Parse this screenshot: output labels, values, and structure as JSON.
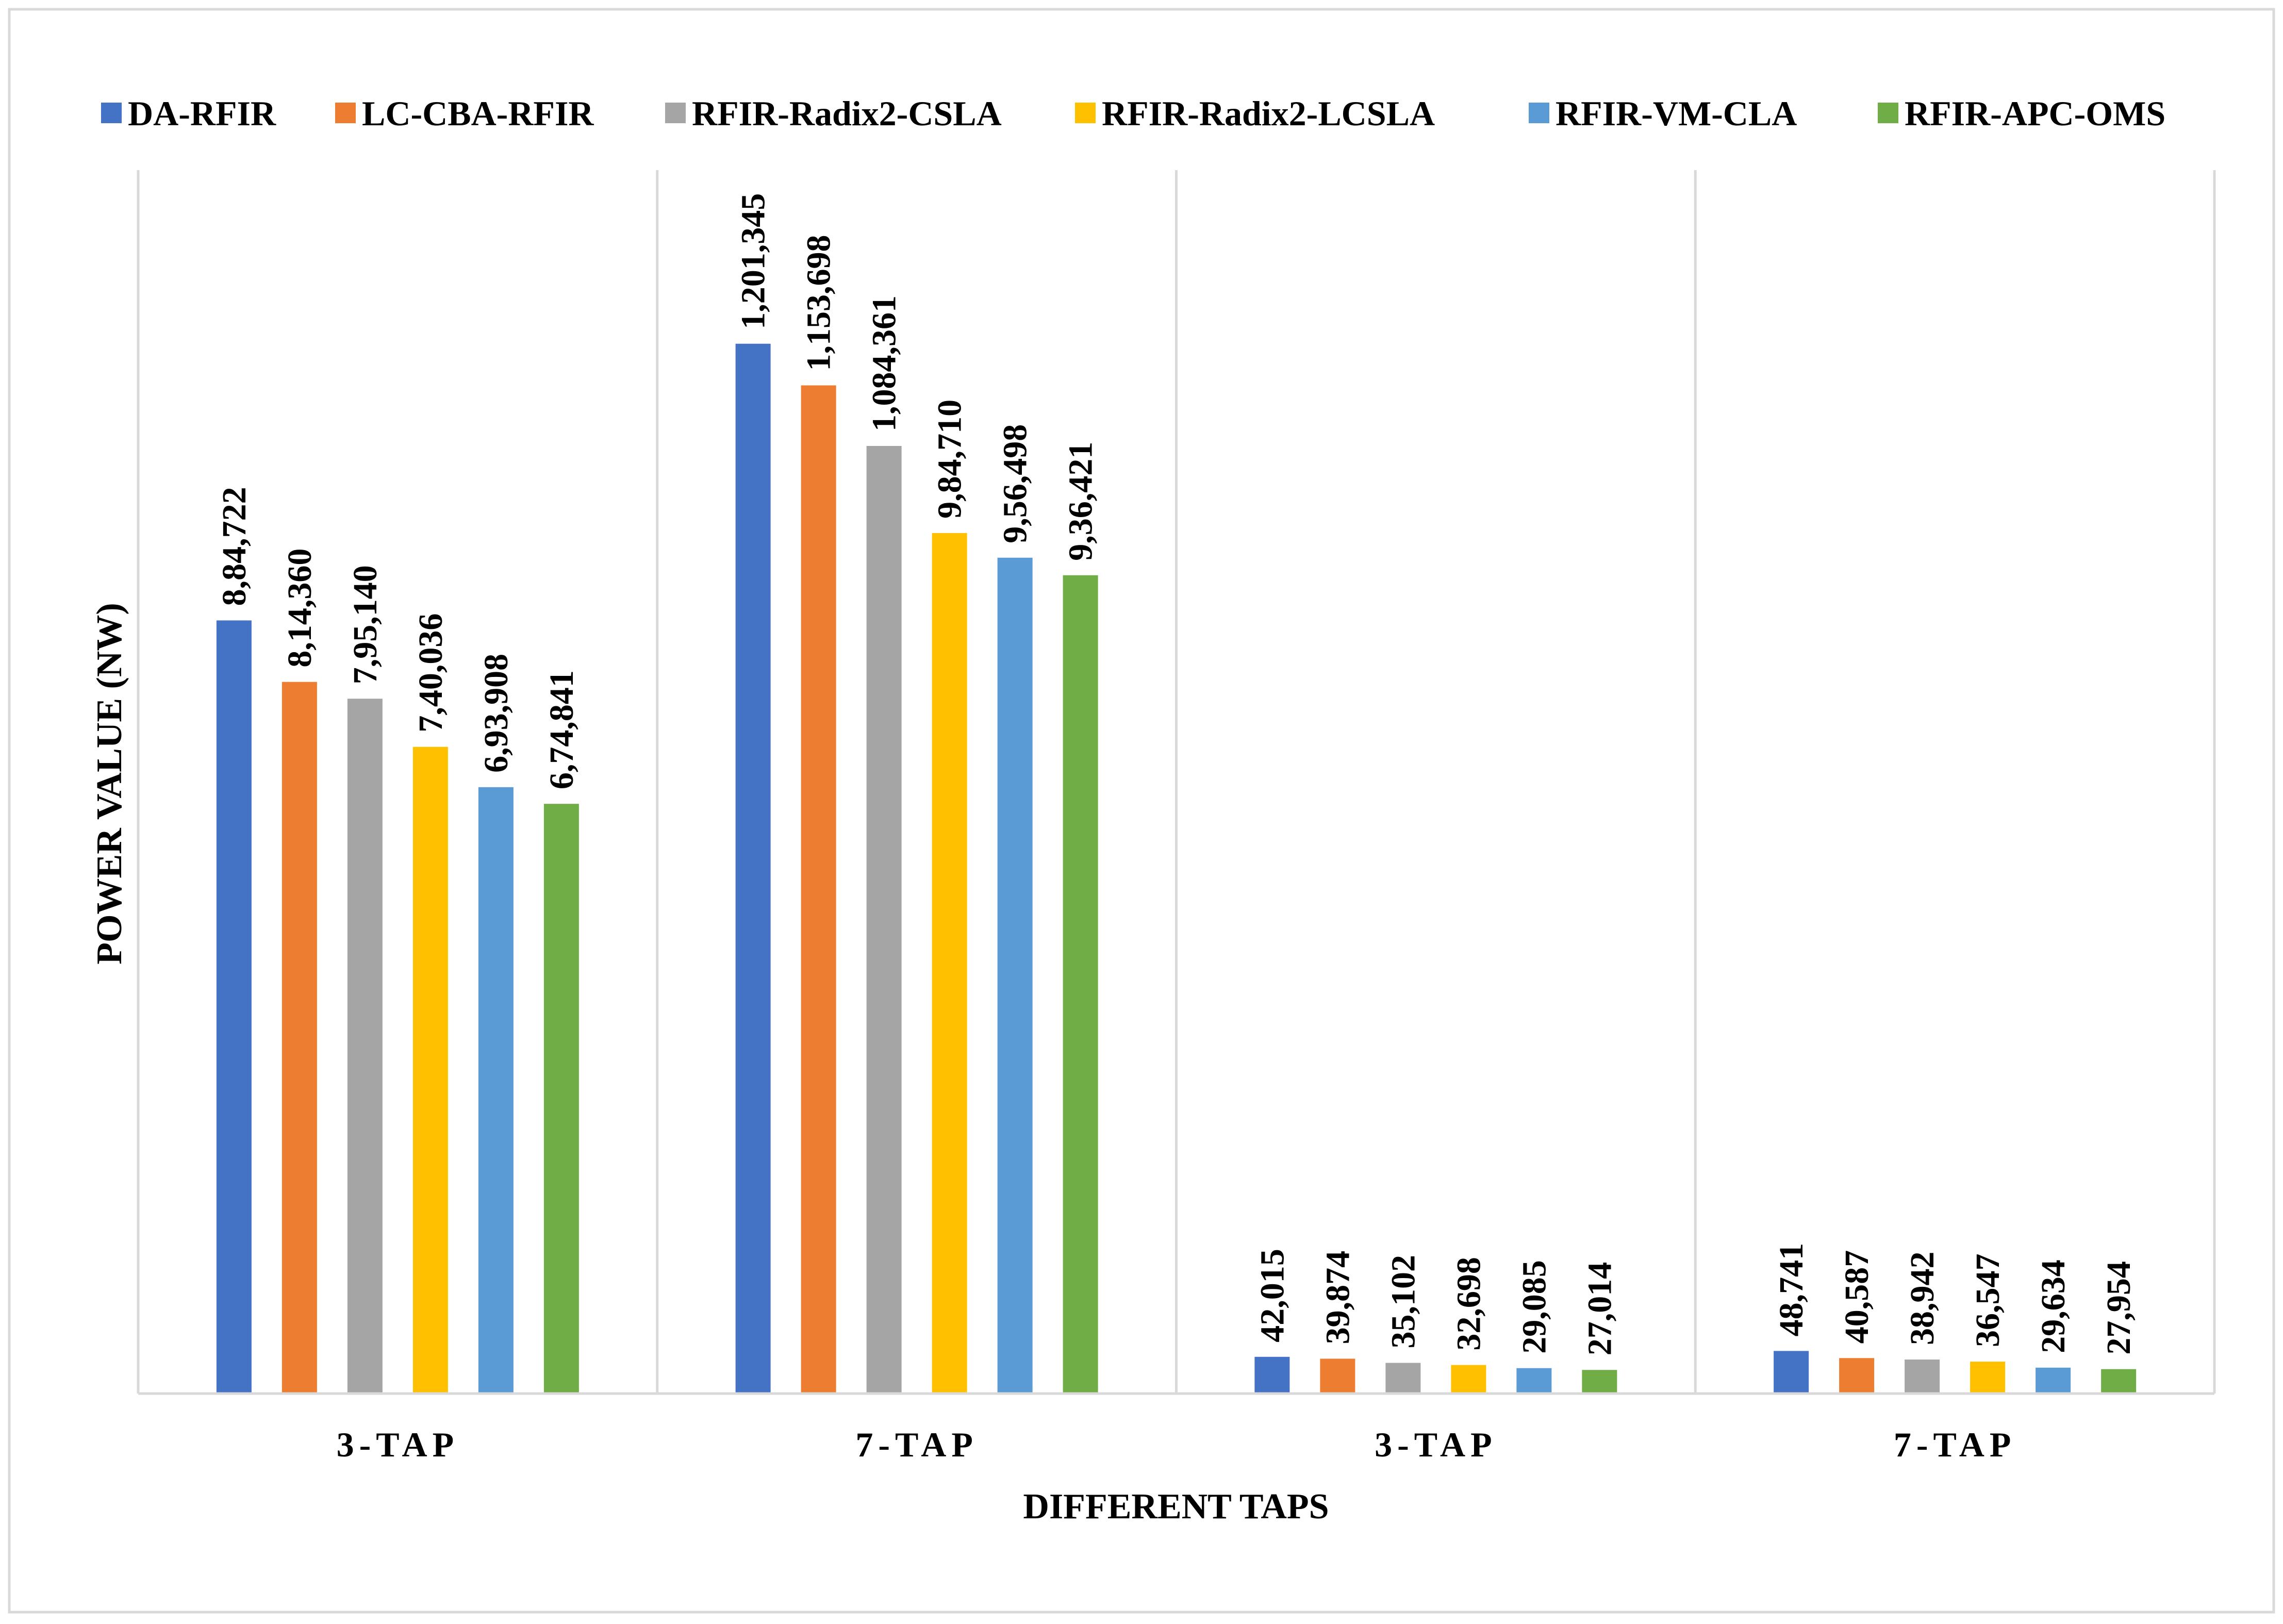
{
  "chart_data": {
    "type": "bar",
    "title": "",
    "xlabel": "DIFFERENT TAPS",
    "ylabel": "POWER VALUE (NW)",
    "ylim": [
      0,
      1400000
    ],
    "grid": false,
    "legend_position": "top",
    "categories": [
      "3-TAP",
      "7-TAP",
      "3-TAP",
      "7-TAP"
    ],
    "series": [
      {
        "name": "DA-RFIR",
        "color": "#4472C4",
        "values": [
          884722,
          1201345,
          42015,
          48741
        ],
        "labels": [
          "8,84,722",
          "1,201,345",
          "42,015",
          "48,741"
        ]
      },
      {
        "name": "LC-CBA-RFIR",
        "color": "#ED7D31",
        "values": [
          814360,
          1153698,
          39874,
          40587
        ],
        "labels": [
          "8,14,360",
          "1,153,698",
          "39,874",
          "40,587"
        ]
      },
      {
        "name": "RFIR-Radix2-CSLA",
        "color": "#A5A5A5",
        "values": [
          795140,
          1084361,
          35102,
          38942
        ],
        "labels": [
          "7,95,140",
          "1,084,361",
          "35,102",
          "38,942"
        ]
      },
      {
        "name": "RFIR-Radix2-LCSLA",
        "color": "#FFC000",
        "values": [
          740036,
          984710,
          32698,
          36547
        ],
        "labels": [
          "7,40,036",
          "9,84,710",
          "32,698",
          "36,547"
        ]
      },
      {
        "name": "RFIR-VM-CLA",
        "color": "#5B9BD5",
        "values": [
          693908,
          956498,
          29085,
          29634
        ],
        "labels": [
          "6,93,908",
          "9,56,498",
          "29,085",
          "29,634"
        ]
      },
      {
        "name": "RFIR-APC-OMS",
        "color": "#70AD47",
        "values": [
          674841,
          936421,
          27014,
          27954
        ],
        "labels": [
          "6,74,841",
          "9,36,421",
          "27,014",
          "27,954"
        ]
      }
    ]
  }
}
